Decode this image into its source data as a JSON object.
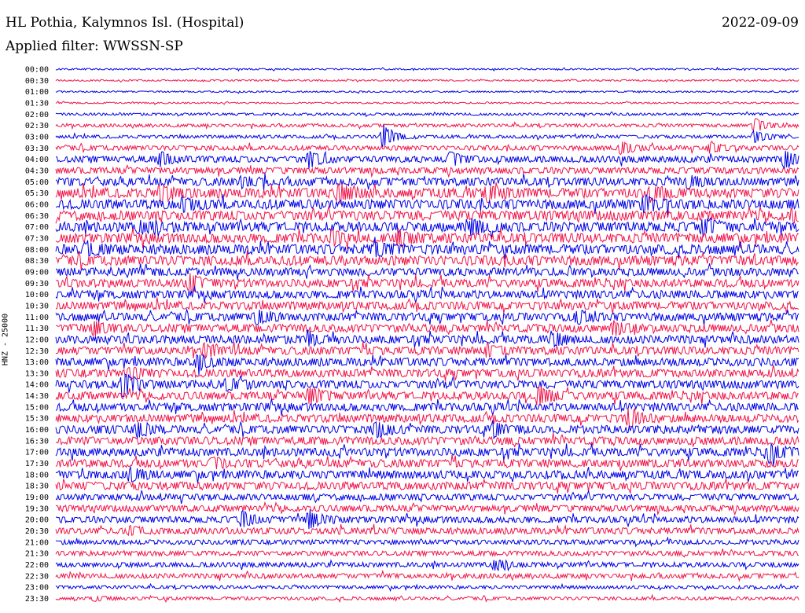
{
  "header": {
    "station": "HL Pothia, Kalymnos Isl. (Hospital)",
    "date": "2022-09-09",
    "filter": "Applied filter: WWSSN-SP"
  },
  "chart_data": {
    "type": "helicorder",
    "title": "HL Pothia, Kalymnos Isl. (Hospital)",
    "ylabel": "HNZ - 25000",
    "colors": [
      "#0000e6",
      "#f0144a"
    ],
    "rows": [
      "00:00",
      "00:30",
      "01:00",
      "01:30",
      "02:00",
      "02:30",
      "03:00",
      "03:30",
      "04:00",
      "04:30",
      "05:00",
      "05:30",
      "06:00",
      "06:30",
      "07:00",
      "07:30",
      "08:00",
      "08:30",
      "09:00",
      "09:30",
      "10:00",
      "10:30",
      "11:00",
      "11:30",
      "12:00",
      "12:30",
      "13:00",
      "13:30",
      "14:00",
      "14:30",
      "15:00",
      "15:30",
      "16:00",
      "16:30",
      "17:00",
      "17:30",
      "18:00",
      "18:30",
      "19:00",
      "19:30",
      "20:00",
      "20:30",
      "21:00",
      "21:30",
      "22:00",
      "22:30",
      "23:00",
      "23:30"
    ],
    "noise_level": [
      1,
      1,
      1,
      1,
      1.5,
      2,
      2,
      3,
      4,
      4,
      5,
      6,
      6,
      6,
      6,
      6,
      6,
      6,
      5,
      5,
      5,
      5,
      5,
      5,
      5,
      5,
      5,
      5,
      5,
      5,
      5,
      5,
      5,
      5,
      5,
      5,
      5,
      5,
      4,
      4,
      4,
      4,
      3,
      3,
      3,
      3,
      2,
      2
    ],
    "events": [
      {
        "row": 6,
        "x": 0.44,
        "amp": 15
      },
      {
        "row": 5,
        "x": 0.94,
        "amp": 9
      },
      {
        "row": 6,
        "x": 0.94,
        "amp": 8
      },
      {
        "row": 7,
        "x": 0.76,
        "amp": 9
      },
      {
        "row": 7,
        "x": 0.88,
        "amp": 7
      },
      {
        "row": 8,
        "x": 0.14,
        "amp": 8
      },
      {
        "row": 8,
        "x": 0.34,
        "amp": 10
      },
      {
        "row": 8,
        "x": 0.53,
        "amp": 8
      },
      {
        "row": 8,
        "x": 0.98,
        "amp": 11
      },
      {
        "row": 10,
        "x": 0.25,
        "amp": 6
      },
      {
        "row": 10,
        "x": 0.85,
        "amp": 7
      },
      {
        "row": 11,
        "x": 0.14,
        "amp": 10
      },
      {
        "row": 11,
        "x": 0.38,
        "amp": 10
      },
      {
        "row": 11,
        "x": 0.58,
        "amp": 9
      },
      {
        "row": 11,
        "x": 0.8,
        "amp": 8
      },
      {
        "row": 12,
        "x": 0.17,
        "amp": 8
      },
      {
        "row": 12,
        "x": 0.79,
        "amp": 9
      },
      {
        "row": 13,
        "x": 0.99,
        "amp": 7
      },
      {
        "row": 14,
        "x": 0.11,
        "amp": 6
      },
      {
        "row": 14,
        "x": 0.56,
        "amp": 10
      },
      {
        "row": 14,
        "x": 0.87,
        "amp": 9
      },
      {
        "row": 15,
        "x": 0.37,
        "amp": 8
      },
      {
        "row": 15,
        "x": 0.46,
        "amp": 10
      },
      {
        "row": 16,
        "x": 0.04,
        "amp": 7
      },
      {
        "row": 16,
        "x": 0.43,
        "amp": 7
      },
      {
        "row": 19,
        "x": 0.18,
        "amp": 11
      },
      {
        "row": 22,
        "x": 0.27,
        "amp": 9
      },
      {
        "row": 22,
        "x": 0.7,
        "amp": 8
      },
      {
        "row": 23,
        "x": 0.05,
        "amp": 9
      },
      {
        "row": 23,
        "x": 0.75,
        "amp": 8
      },
      {
        "row": 24,
        "x": 0.34,
        "amp": 7
      },
      {
        "row": 24,
        "x": 0.67,
        "amp": 7
      },
      {
        "row": 25,
        "x": 0.2,
        "amp": 7
      },
      {
        "row": 25,
        "x": 0.58,
        "amp": 6
      },
      {
        "row": 26,
        "x": 0.19,
        "amp": 9
      },
      {
        "row": 27,
        "x": 0.1,
        "amp": 6
      },
      {
        "row": 28,
        "x": 0.09,
        "amp": 15
      },
      {
        "row": 28,
        "x": 0.23,
        "amp": 7
      },
      {
        "row": 29,
        "x": 0.34,
        "amp": 10
      },
      {
        "row": 29,
        "x": 0.65,
        "amp": 12
      },
      {
        "row": 31,
        "x": 0.77,
        "amp": 10
      },
      {
        "row": 32,
        "x": 0.11,
        "amp": 9
      },
      {
        "row": 32,
        "x": 0.43,
        "amp": 9
      },
      {
        "row": 32,
        "x": 0.59,
        "amp": 9
      },
      {
        "row": 34,
        "x": 0.96,
        "amp": 11
      },
      {
        "row": 35,
        "x": 0.21,
        "amp": 7
      },
      {
        "row": 36,
        "x": 0.1,
        "amp": 8
      },
      {
        "row": 40,
        "x": 0.25,
        "amp": 10
      },
      {
        "row": 40,
        "x": 0.34,
        "amp": 13
      },
      {
        "row": 41,
        "x": 0.1,
        "amp": 5
      },
      {
        "row": 44,
        "x": 0.59,
        "amp": 6
      },
      {
        "row": 47,
        "x": 0.05,
        "amp": 3
      }
    ]
  }
}
